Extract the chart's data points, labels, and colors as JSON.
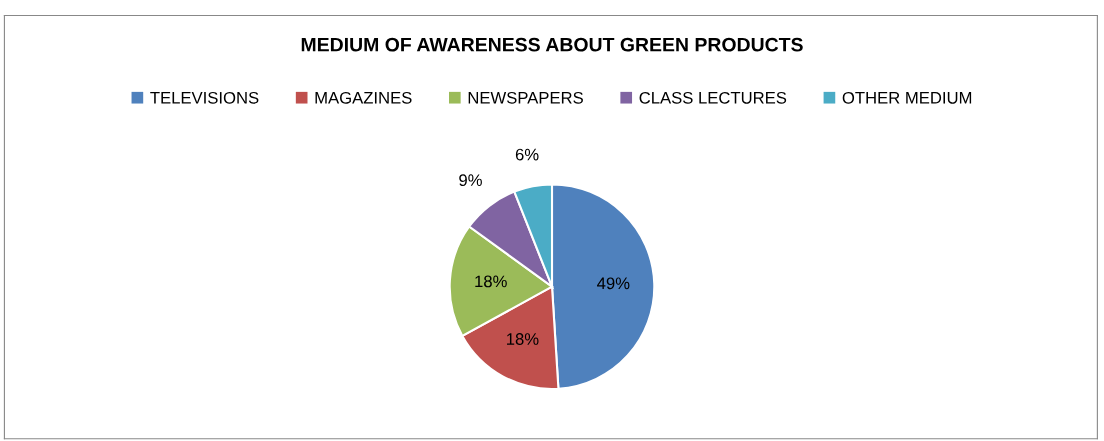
{
  "chart_data": {
    "type": "pie",
    "title": "MEDIUM OF AWARENESS ABOUT GREEN PRODUCTS",
    "categories": [
      "TELEVISIONS",
      "MAGAZINES",
      "NEWSPAPERS",
      "CLASS LECTURES",
      "OTHER MEDIUM"
    ],
    "values": [
      49,
      18,
      18,
      9,
      6
    ],
    "colors": [
      "#4f81bd",
      "#c0504d",
      "#9bbb59",
      "#8064a2",
      "#4bacc6"
    ],
    "value_labels": [
      "49%",
      "18%",
      "18%",
      "9%",
      "6%"
    ],
    "legend": "top"
  }
}
